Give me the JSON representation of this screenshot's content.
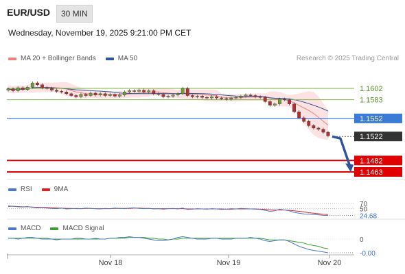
{
  "header": {
    "symbol": "EUR/USD",
    "timeframe": "30 MIN",
    "datetime": "Wednesday, November 19, 2025 9:21:00 PM CET",
    "copyright": "Research © 2025 Trading Central"
  },
  "legend": {
    "main": [
      {
        "name": "MA 20 + Bollinger Bands",
        "color": "#f08080"
      },
      {
        "name": "MA 50",
        "color": "#2f5597"
      }
    ],
    "rsi": [
      {
        "name": "RSI",
        "color": "#4a78c8"
      },
      {
        "name": "9MA",
        "color": "#e02020"
      }
    ],
    "macd": [
      {
        "name": "MACD",
        "color": "#4a78c8"
      },
      {
        "name": "MACD Signal",
        "color": "#3aa030"
      }
    ]
  },
  "chart_data": {
    "type": "candlestick",
    "symbol": "EUR/USD",
    "x_ticks": [
      "Nov 18",
      "Nov 19",
      "Nov 20"
    ],
    "ylim": [
      1.1455,
      1.1635
    ],
    "price_series_approx": [
      1.1601,
      1.1598,
      1.1603,
      1.16,
      1.1604,
      1.1611,
      1.1608,
      1.1603,
      1.1602,
      1.1599,
      1.1597,
      1.1596,
      1.1593,
      1.159,
      1.1588,
      1.1592,
      1.159,
      1.1594,
      1.1591,
      1.1593,
      1.159,
      1.1592,
      1.1589,
      1.1591,
      1.1596,
      1.1598,
      1.1597,
      1.1599,
      1.1596,
      1.1598,
      1.1593,
      1.1592,
      1.1588,
      1.1589,
      1.1591,
      1.1593,
      1.1602,
      1.159,
      1.1588,
      1.1589,
      1.1587,
      1.1586,
      1.1588,
      1.1586,
      1.1585,
      1.1584,
      1.1586,
      1.1587,
      1.1589,
      1.1591,
      1.159,
      1.1588,
      1.1587,
      1.158,
      1.1574,
      1.1576,
      1.1584,
      1.1583,
      1.1576,
      1.1563,
      1.1553,
      1.1547,
      1.154,
      1.1536,
      1.1534,
      1.1529,
      1.1523
    ],
    "levels": [
      {
        "value": 1.1602,
        "label": "1.1602",
        "style": "resistance",
        "color": "#7cb342"
      },
      {
        "value": 1.1583,
        "label": "1.1583",
        "style": "resistance",
        "color": "#7cb342"
      },
      {
        "value": 1.1552,
        "label": "1.1552",
        "style": "pivot",
        "color": "#3a7bd5"
      },
      {
        "value": 1.1522,
        "label": "1.1522",
        "style": "current",
        "color": "#333333"
      },
      {
        "value": 1.1482,
        "label": "1.1482",
        "style": "target",
        "color": "#e00000"
      },
      {
        "value": 1.1463,
        "label": "1.1463",
        "style": "target",
        "color": "#e00000"
      }
    ],
    "forecast_arrow": {
      "from": 1.1522,
      "to": 1.1466,
      "color": "#2f5597"
    },
    "rsi": {
      "levels": [
        {
          "value": 70,
          "label": "70"
        },
        {
          "value": 50,
          "label": "50"
        }
      ],
      "current_label": "24.68",
      "values_approx": [
        58,
        59,
        57,
        56,
        58,
        55,
        53,
        54,
        52,
        51,
        50,
        52,
        49,
        50,
        51,
        50,
        52,
        51,
        50,
        49,
        51,
        50,
        52,
        51,
        50,
        52,
        53,
        51,
        50,
        51,
        49,
        50,
        48,
        50,
        51,
        49,
        52,
        47,
        48,
        50,
        49,
        48,
        50,
        49,
        47,
        48,
        50,
        49,
        51,
        50,
        49,
        48,
        47,
        44,
        40,
        42,
        48,
        45,
        42,
        36,
        33,
        30,
        29,
        28,
        27,
        25,
        24.68
      ],
      "ma_values_approx": [
        60,
        59,
        58,
        57,
        57,
        56,
        55,
        55,
        54,
        53,
        52,
        52,
        51,
        51,
        50,
        50,
        51,
        51,
        50,
        50,
        50,
        50,
        51,
        51,
        51,
        51,
        52,
        52,
        51,
        51,
        50,
        50,
        50,
        50,
        50,
        50,
        50,
        49,
        49,
        49,
        49,
        49,
        49,
        49,
        49,
        48,
        48,
        49,
        49,
        49,
        49,
        49,
        48,
        47,
        46,
        45,
        45,
        45,
        44,
        42,
        40,
        38,
        35,
        33,
        31,
        29,
        28
      ]
    },
    "macd": {
      "levels": [
        {
          "value": 0,
          "label": "0"
        }
      ],
      "current_label": "-0.00",
      "values_approx": [
        0.0001,
        0.0001,
        0.0,
        0.0001,
        0.0002,
        0.0002,
        0.0001,
        0.0,
        0.0,
        0.0,
        -0.0001,
        0.0,
        0.0,
        0.0,
        0.0001,
        0.0001,
        0.0,
        0.0,
        0.0001,
        0.0,
        0.0,
        0.0001,
        0.0001,
        0.0002,
        0.0002,
        0.0003,
        0.0002,
        0.0002,
        0.0001,
        0.0,
        -0.0001,
        -0.0002,
        -0.0002,
        -0.0001,
        0.0,
        0.0002,
        0.0003,
        0.0002,
        0.0001,
        0.0,
        0.0,
        0.0,
        0.0001,
        0.0001,
        0.0,
        0.0,
        0.0,
        0.0001,
        0.0001,
        0.0001,
        0.0002,
        0.0001,
        0.0,
        -0.0002,
        -0.0003,
        -0.0002,
        -0.0001,
        -0.0001,
        -0.0003,
        -0.0006,
        -0.0009,
        -0.0011,
        -0.0013,
        -0.0014,
        -0.0015,
        -0.0016,
        -0.0017
      ],
      "signal_approx": [
        0.0001,
        0.0001,
        0.0001,
        0.0001,
        0.0001,
        0.0001,
        0.0001,
        0.0001,
        0.0001,
        0.0,
        0.0,
        0.0,
        0.0,
        0.0,
        0.0,
        0.0,
        0.0,
        0.0,
        0.0,
        0.0,
        0.0,
        0.0001,
        0.0001,
        0.0001,
        0.0001,
        0.0002,
        0.0002,
        0.0002,
        0.0002,
        0.0001,
        0.0001,
        0.0,
        0.0,
        -0.0001,
        0.0,
        0.0,
        0.0001,
        0.0001,
        0.0001,
        0.0001,
        0.0001,
        0.0001,
        0.0001,
        0.0001,
        0.0001,
        0.0001,
        0.0001,
        0.0001,
        0.0001,
        0.0001,
        0.0001,
        0.0001,
        0.0001,
        0.0,
        -0.0001,
        -0.0001,
        -0.0001,
        -0.0001,
        -0.0002,
        -0.0003,
        -0.0004,
        -0.0005,
        -0.0007,
        -0.0008,
        -0.0009,
        -0.0011,
        -0.0012
      ]
    }
  }
}
